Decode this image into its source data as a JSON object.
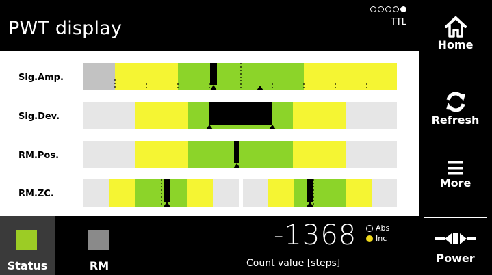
{
  "header": {
    "title": "PWT display",
    "signal_type": "TTL",
    "indicator_dots": [
      false,
      false,
      false,
      false,
      true
    ]
  },
  "rows": [
    {
      "label": "Sig.Amp."
    },
    {
      "label": "Sig.Dev."
    },
    {
      "label": "RM.Pos."
    },
    {
      "label": "RM.ZC."
    }
  ],
  "footer": {
    "tabs": [
      {
        "label": "Status",
        "color": "#9ccc25",
        "active": true
      },
      {
        "label": "RM",
        "color": "#8a8a8a",
        "active": false
      }
    ],
    "count_value": "-1368",
    "count_label": "Count value [steps]",
    "modes": [
      {
        "label": "Abs",
        "selected": false
      },
      {
        "label": "Inc",
        "selected": true
      }
    ]
  },
  "sidebar": {
    "home_label": "Home",
    "refresh_label": "Refresh",
    "more_label": "More",
    "power_label": "Power"
  },
  "colors": {
    "green": "#8cd429",
    "yellow": "#f5f533",
    "light_gray": "#e6e6e6",
    "gray": "#c2c2c2",
    "active_tab": "#3a3a3a"
  }
}
